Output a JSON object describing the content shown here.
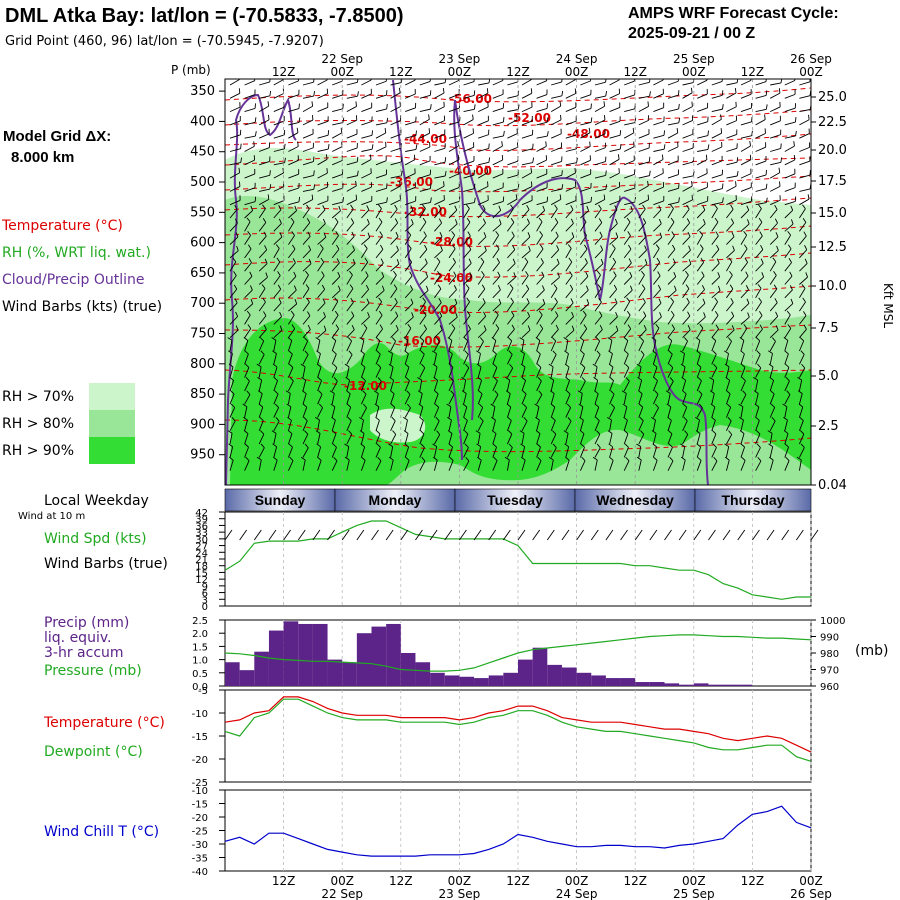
{
  "header": {
    "title": "DML Atka Bay:  lat/lon = (-70.5833, -7.8500)",
    "grid_point": "Grid Point (460, 96) lat/lon = (-70.5945, -7.9207)",
    "cycle_line1": "AMPS WRF Forecast Cycle:",
    "cycle_line2": "2025-09-21 / 00  Z"
  },
  "left_panel": {
    "model_grid_line1": "Model Grid ΔX:",
    "model_grid_line2": "8.000 km",
    "legend_temperature": "Temperature (°C)",
    "legend_rh": "RH (%, WRT liq. wat.)",
    "legend_cloud": "Cloud/Precip Outline",
    "legend_wind": "Wind Barbs (kts) (true)",
    "rh_keys": [
      {
        "label": "RH > 70%",
        "color": "#ccf5cc"
      },
      {
        "label": "RH > 80%",
        "color": "#99e699"
      },
      {
        "label": "RH > 90%",
        "color": "#33dd33"
      }
    ]
  },
  "time_axis": {
    "top_hours": [
      "12Z",
      "00Z",
      "12Z",
      "00Z",
      "12Z",
      "00Z",
      "12Z",
      "00Z",
      "12Z",
      "00Z"
    ],
    "dates": [
      "22 Sep",
      "23 Sep",
      "24 Sep",
      "25 Sep",
      "26 Sep"
    ],
    "bottom_hours": [
      "12Z",
      "00Z",
      "12Z",
      "00Z",
      "12Z",
      "00Z",
      "12Z",
      "00Z",
      "12Z",
      "00Z"
    ]
  },
  "colors": {
    "temperature": "#dd0000",
    "rh": "#22aa22",
    "cloud": "#663399",
    "precip": "#5c2388",
    "wind_chill": "#0000cc",
    "day_bar": "#6677bb"
  },
  "chart_data": [
    {
      "type": "table",
      "name": "cross-section",
      "ylabel": "P (mb)",
      "y2label": "Kft MSL",
      "pressure_ticks": [
        "350",
        "400",
        "450",
        "500",
        "550",
        "600",
        "650",
        "700",
        "750",
        "800",
        "850",
        "900",
        "950"
      ],
      "height_ticks": [
        "25.0",
        "22.5",
        "20.0",
        "17.5",
        "15.0",
        "12.5",
        "10.0",
        "7.5",
        "5.0",
        "2.5",
        "0.04"
      ],
      "isotherm_labels": [
        "-56.00",
        "-52.00",
        "-48.00",
        "-44.00",
        "-40.00",
        "-36.00",
        "-32.00",
        "-28.00",
        "-24.00",
        "-20.00",
        "-16.00",
        "-12.00"
      ]
    },
    {
      "type": "table",
      "name": "local-weekday",
      "title": "Local Weekday",
      "subtitle": "Wind at 10 m",
      "days": [
        "Sunday",
        "Monday",
        "Tuesday",
        "Wednesday",
        "Thursday"
      ]
    },
    {
      "type": "line",
      "name": "wind-speed",
      "title": "Wind Spd (kts)",
      "subtitle": "Wind Barbs (true)",
      "ylim": [
        0,
        42
      ],
      "yticks": [
        "42",
        "39",
        "36",
        "33",
        "30",
        "27",
        "24",
        "21",
        "18",
        "15",
        "12",
        "9",
        "6",
        "3",
        "0"
      ],
      "x_hours": [
        0,
        3,
        6,
        9,
        12,
        15,
        18,
        21,
        24,
        27,
        30,
        33,
        36,
        39,
        42,
        45,
        48,
        51,
        54,
        57,
        60,
        63,
        66,
        69,
        72,
        75,
        78,
        81,
        84,
        87,
        90,
        93,
        96,
        99,
        102,
        105,
        108,
        111,
        114,
        117,
        120
      ],
      "values": [
        16,
        20,
        28,
        29,
        29,
        29,
        30,
        30,
        33,
        36,
        38,
        38,
        35,
        32,
        31,
        30,
        30,
        30,
        30,
        30,
        27,
        19,
        19,
        19,
        19,
        19,
        19,
        19,
        18,
        18,
        17,
        16,
        16,
        14,
        10,
        8,
        5,
        4,
        3,
        4,
        4
      ]
    },
    {
      "type": "bar",
      "name": "precip-pressure",
      "title": "Precip (mm)",
      "title_lines": [
        "liq. equiv.",
        "3-hr accum"
      ],
      "series_label": "Pressure (mb)",
      "y2unit": "(mb)",
      "ylim": [
        0,
        2.5
      ],
      "yticks": [
        "2.5",
        "2.0",
        "1.5",
        "1.0",
        "0.5",
        "0.0"
      ],
      "y2lim": [
        960,
        1000
      ],
      "y2ticks": [
        "1000",
        "990",
        "980",
        "970",
        "960"
      ],
      "x_hours": [
        0,
        3,
        6,
        9,
        12,
        15,
        18,
        21,
        24,
        27,
        30,
        33,
        36,
        39,
        42,
        45,
        48,
        51,
        54,
        57,
        60,
        63,
        66,
        69,
        72,
        75,
        78,
        81,
        84,
        87,
        90,
        93,
        96,
        99,
        102,
        105,
        108,
        111,
        114,
        117,
        120
      ],
      "precip": [
        0.9,
        0.6,
        1.3,
        2.1,
        2.45,
        2.35,
        2.35,
        1.0,
        0.9,
        2.0,
        2.25,
        2.35,
        1.25,
        0.9,
        0.5,
        0.4,
        0.35,
        0.3,
        0.4,
        0.5,
        1.0,
        1.45,
        0.8,
        0.7,
        0.5,
        0.4,
        0.3,
        0.3,
        0.15,
        0.15,
        0.1,
        0.05,
        0.1,
        0.05,
        0.05,
        0.05,
        0.0,
        0.0,
        0.0,
        0.0,
        0.0
      ],
      "pressure": [
        980,
        979.5,
        978.5,
        977,
        976,
        975.5,
        975,
        975,
        974.5,
        974,
        973.5,
        972,
        970,
        969.5,
        969,
        969,
        969.5,
        971,
        974,
        977,
        980,
        982,
        983,
        984,
        985,
        986,
        987,
        988,
        989,
        990,
        990.5,
        991,
        991,
        990.5,
        990,
        990,
        989.5,
        989,
        989,
        988.5,
        988
      ]
    },
    {
      "type": "line",
      "name": "temperature-dewpoint",
      "ylim": [
        -25,
        -5
      ],
      "yticks": [
        "-5",
        "-10",
        "-15",
        "-20",
        "-25"
      ],
      "x_hours": [
        0,
        3,
        6,
        9,
        12,
        15,
        18,
        21,
        24,
        27,
        30,
        33,
        36,
        39,
        42,
        45,
        48,
        51,
        54,
        57,
        60,
        63,
        66,
        69,
        72,
        75,
        78,
        81,
        84,
        87,
        90,
        93,
        96,
        99,
        102,
        105,
        108,
        111,
        114,
        117,
        120
      ],
      "series": [
        {
          "name": "Temperature (°C)",
          "values": [
            -12,
            -11.5,
            -10,
            -9.5,
            -6.5,
            -6.5,
            -7.5,
            -9,
            -10,
            -10.5,
            -10.5,
            -10.5,
            -11,
            -11,
            -11,
            -11,
            -11.5,
            -11,
            -10,
            -9.5,
            -8.5,
            -8.5,
            -9.5,
            -11,
            -11.5,
            -12,
            -12,
            -12,
            -12.5,
            -13,
            -13.5,
            -13.5,
            -14,
            -14.5,
            -15.5,
            -16,
            -15.5,
            -15,
            -15.5,
            -17,
            -18.5
          ]
        },
        {
          "name": "Dewpoint (°C)",
          "values": [
            -14,
            -15,
            -11,
            -10,
            -7,
            -7,
            -8.5,
            -10,
            -11,
            -11.5,
            -11.5,
            -11.5,
            -12,
            -12,
            -12,
            -12,
            -12.5,
            -12,
            -11,
            -10.5,
            -9.5,
            -9.5,
            -10.5,
            -12,
            -13,
            -13.5,
            -14,
            -14,
            -14.5,
            -15,
            -15.5,
            -16,
            -16.5,
            -17.5,
            -18,
            -18,
            -17.5,
            -17,
            -17,
            -19.5,
            -20.5
          ]
        }
      ]
    },
    {
      "type": "line",
      "name": "wind-chill",
      "title": "Wind Chill T (°C)",
      "ylim": [
        -40,
        -10
      ],
      "yticks": [
        "-10",
        "-15",
        "-20",
        "-25",
        "-30",
        "-35",
        "-40"
      ],
      "x_hours": [
        0,
        3,
        6,
        9,
        12,
        15,
        18,
        21,
        24,
        27,
        30,
        33,
        36,
        39,
        42,
        45,
        48,
        51,
        54,
        57,
        60,
        63,
        66,
        69,
        72,
        75,
        78,
        81,
        84,
        87,
        90,
        93,
        96,
        99,
        102,
        105,
        108,
        111,
        114,
        117,
        120
      ],
      "values": [
        -29,
        -27.5,
        -30,
        -26,
        -26,
        -28,
        -30,
        -32,
        -33,
        -34,
        -34.5,
        -34.5,
        -34.5,
        -34.5,
        -34,
        -34,
        -34,
        -33.5,
        -32,
        -30,
        -26.5,
        -27.5,
        -29,
        -30,
        -31,
        -31,
        -30.5,
        -30.5,
        -31,
        -31,
        -31.5,
        -30.5,
        -30,
        -29,
        -28,
        -23,
        -19,
        -18,
        -16,
        -22,
        -24
      ]
    }
  ]
}
